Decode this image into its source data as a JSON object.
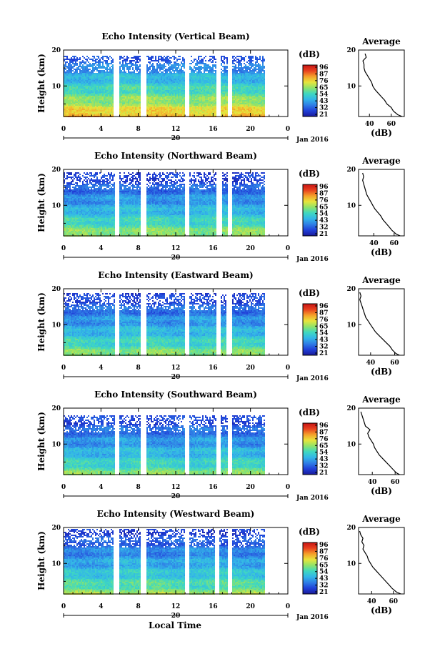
{
  "figure": {
    "xlabel": "Local Time",
    "date_label": "Jan 2016",
    "colorbar_unit": "(dB)",
    "avg_title": "Average",
    "avg_xlabel": "(dB)",
    "ylabel": "Height (km)",
    "colorbar_ticks": [
      "96",
      "87",
      "76",
      "65",
      "54",
      "43",
      "32",
      "21"
    ],
    "x_ticks": [
      "0",
      "4",
      "8",
      "12",
      "16",
      "20",
      "0"
    ],
    "y_ticks": [
      "20",
      "10"
    ],
    "day_label": "20"
  },
  "colors": {
    "colormap": [
      "#1a1a9a",
      "#2040d8",
      "#2f7ee6",
      "#33b6e8",
      "#3fd8c0",
      "#8fe36a",
      "#e8e43c",
      "#f5a02a",
      "#e8401e",
      "#c81414"
    ]
  },
  "chart_data": [
    {
      "type": "heatmap",
      "title": "Echo Intensity (Vertical Beam)",
      "xlabel": "Local Time",
      "ylabel": "Height (km)",
      "xlim": [
        0,
        24
      ],
      "ylim": [
        1.5,
        20
      ],
      "clim": [
        21,
        96
      ],
      "gaps_hours": [
        [
          5.4,
          5.9
        ],
        [
          8.2,
          8.9
        ],
        [
          13.0,
          13.5
        ],
        [
          16.3,
          16.8
        ],
        [
          17.6,
          18.0
        ],
        [
          21.5,
          24
        ]
      ],
      "echo_top_km": 18.5,
      "surface_db": 80,
      "top_db": 33,
      "average_profile": {
        "xlabel": "(dB)",
        "x_ticks": [
          40,
          60
        ],
        "xlim": [
          30,
          72
        ],
        "height_km": [
          1.5,
          2,
          3,
          4,
          5,
          6,
          7,
          8,
          9,
          10,
          11,
          12,
          13,
          14,
          15,
          16,
          17,
          18,
          19
        ],
        "db": [
          70,
          66,
          62,
          60,
          56,
          54,
          51,
          48,
          45,
          43,
          42,
          40,
          38,
          36,
          35,
          35,
          34,
          37,
          36
        ]
      }
    },
    {
      "type": "heatmap",
      "title": "Echo Intensity (Northward Beam)",
      "xlabel": "Local Time",
      "ylabel": "Height (km)",
      "xlim": [
        0,
        24
      ],
      "ylim": [
        1.5,
        20
      ],
      "clim": [
        21,
        96
      ],
      "gaps_hours": [
        [
          5.5,
          6.0
        ],
        [
          8.3,
          8.9
        ],
        [
          13.0,
          13.4
        ],
        [
          16.4,
          16.9
        ],
        [
          17.6,
          18.0
        ],
        [
          21.5,
          24
        ]
      ],
      "echo_top_km": 19.3,
      "surface_db": 66,
      "top_db": 28,
      "average_profile": {
        "xlabel": "(dB)",
        "x_ticks": [
          40,
          60
        ],
        "xlim": [
          25,
          70
        ],
        "height_km": [
          1.5,
          2,
          3,
          4,
          5,
          6,
          7,
          8,
          9,
          10,
          11,
          12,
          13,
          14,
          15,
          16,
          17,
          18,
          19
        ],
        "db": [
          66,
          62,
          58,
          55,
          52,
          49,
          47,
          44,
          41,
          39,
          37,
          35,
          33,
          32,
          31,
          30,
          29,
          30,
          29
        ]
      }
    },
    {
      "type": "heatmap",
      "title": "Echo Intensity (Eastward Beam)",
      "xlabel": "Local Time",
      "ylabel": "Height (km)",
      "xlim": [
        0,
        24
      ],
      "ylim": [
        1.5,
        20
      ],
      "clim": [
        21,
        96
      ],
      "gaps_hours": [
        [
          5.5,
          6.0
        ],
        [
          8.3,
          8.8
        ],
        [
          13.0,
          13.4
        ],
        [
          16.3,
          16.8
        ],
        [
          17.5,
          18.0
        ],
        [
          21.5,
          24
        ]
      ],
      "echo_top_km": 19.0,
      "surface_db": 64,
      "top_db": 29,
      "average_profile": {
        "xlabel": "(dB)",
        "x_ticks": [
          40,
          60
        ],
        "xlim": [
          30,
          68
        ],
        "height_km": [
          1.5,
          2,
          3,
          4,
          5,
          6,
          7,
          8,
          9,
          10,
          11,
          12,
          13,
          14,
          15,
          16,
          17,
          18,
          19
        ],
        "db": [
          64,
          61,
          58,
          56,
          53,
          50,
          47,
          44,
          42,
          40,
          38,
          36,
          35,
          34,
          33,
          32,
          31,
          32,
          31
        ]
      }
    },
    {
      "type": "heatmap",
      "title": "Echo Intensity (Southward Beam)",
      "xlabel": "Local Time",
      "ylabel": "Height (km)",
      "xlim": [
        0,
        24
      ],
      "ylim": [
        1.5,
        20
      ],
      "clim": [
        21,
        96
      ],
      "gaps_hours": [
        [
          5.5,
          6.0
        ],
        [
          8.3,
          8.8
        ],
        [
          13.0,
          13.4
        ],
        [
          16.3,
          16.8
        ],
        [
          17.6,
          18.0
        ],
        [
          21.5,
          24
        ]
      ],
      "echo_top_km": 18.0,
      "surface_db": 62,
      "top_db": 30,
      "average_profile": {
        "xlabel": "(dB)",
        "x_ticks": [
          40,
          60
        ],
        "xlim": [
          28,
          68
        ],
        "height_km": [
          1.5,
          2,
          3,
          4,
          5,
          6,
          7,
          8,
          9,
          10,
          11,
          12,
          13,
          14,
          15,
          16,
          17,
          18,
          19
        ],
        "db": [
          64,
          61,
          58,
          55,
          52,
          49,
          46,
          44,
          42,
          41,
          39,
          37,
          36,
          38,
          34,
          33,
          32,
          31,
          30
        ]
      }
    },
    {
      "type": "heatmap",
      "title": "Echo Intensity (Westward Beam)",
      "xlabel": "Local Time",
      "ylabel": "Height (km)",
      "xlim": [
        0,
        24
      ],
      "ylim": [
        1.5,
        20
      ],
      "clim": [
        21,
        96
      ],
      "gaps_hours": [
        [
          5.4,
          5.9
        ],
        [
          8.2,
          8.8
        ],
        [
          13.0,
          13.4
        ],
        [
          16.2,
          16.7
        ],
        [
          17.6,
          18.0
        ],
        [
          21.5,
          24
        ]
      ],
      "echo_top_km": 19.5,
      "surface_db": 64,
      "top_db": 30,
      "average_profile": {
        "xlabel": "(dB)",
        "x_ticks": [
          40,
          60
        ],
        "xlim": [
          28,
          70
        ],
        "height_km": [
          1.5,
          2,
          3,
          4,
          5,
          6,
          7,
          8,
          9,
          10,
          11,
          12,
          13,
          14,
          15,
          16,
          17,
          18,
          19
        ],
        "db": [
          67,
          63,
          59,
          56,
          53,
          50,
          47,
          44,
          41,
          39,
          37,
          36,
          34,
          32,
          33,
          31,
          32,
          30,
          29
        ]
      }
    }
  ]
}
